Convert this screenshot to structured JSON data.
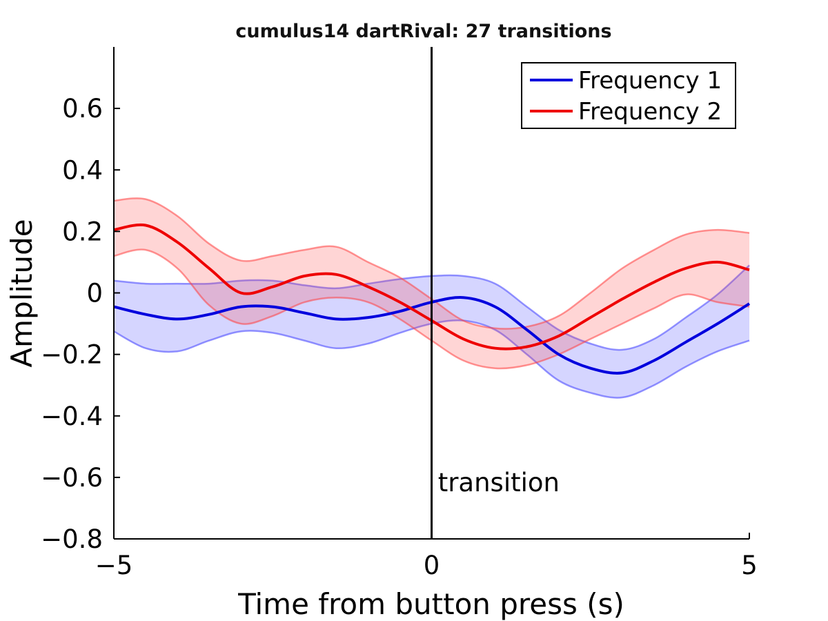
{
  "chart_data": {
    "type": "line",
    "title": "cumulus14 dartRival: 27 transitions",
    "xlabel": "Time from button press (s)",
    "ylabel": "Amplitude",
    "xlim": [
      -5,
      5
    ],
    "ylim": [
      -0.8,
      0.8
    ],
    "xticks": [
      -5,
      0,
      5
    ],
    "xtick_labels": [
      "−5",
      "0",
      "5"
    ],
    "yticks": [
      -0.8,
      -0.6,
      -0.4,
      -0.2,
      0,
      0.2,
      0.4,
      0.6
    ],
    "ytick_labels": [
      "−0.8",
      "−0.6",
      "−0.4",
      "−0.2",
      "0",
      "0.2",
      "0.4",
      "0.6"
    ],
    "grid": false,
    "legend_position": "top-right",
    "annotations": [
      {
        "text": "transition",
        "x": 0.1,
        "y": -0.645
      }
    ],
    "vline": {
      "x": 0,
      "color": "#000000"
    },
    "x": [
      -5,
      -4.5,
      -4,
      -3.5,
      -3,
      -2.5,
      -2,
      -1.5,
      -1,
      -0.5,
      0,
      0.5,
      1,
      1.5,
      2,
      2.5,
      3,
      3.5,
      4,
      4.5,
      5
    ],
    "series": [
      {
        "name": "Frequency 1",
        "color": "#0000dd",
        "band_color": "#4040ff",
        "values": [
          -0.045,
          -0.07,
          -0.085,
          -0.07,
          -0.045,
          -0.045,
          -0.065,
          -0.085,
          -0.08,
          -0.06,
          -0.03,
          -0.015,
          -0.045,
          -0.12,
          -0.2,
          -0.245,
          -0.26,
          -0.22,
          -0.16,
          -0.1,
          -0.035
        ],
        "lower": [
          -0.125,
          -0.18,
          -0.19,
          -0.155,
          -0.125,
          -0.13,
          -0.155,
          -0.18,
          -0.165,
          -0.13,
          -0.1,
          -0.09,
          -0.12,
          -0.2,
          -0.285,
          -0.325,
          -0.34,
          -0.3,
          -0.24,
          -0.19,
          -0.155
        ],
        "upper": [
          0.04,
          0.03,
          0.03,
          0.03,
          0.04,
          0.04,
          0.025,
          0.015,
          0.03,
          0.045,
          0.055,
          0.055,
          0.03,
          -0.045,
          -0.12,
          -0.165,
          -0.185,
          -0.15,
          -0.08,
          -0.005,
          0.09
        ]
      },
      {
        "name": "Frequency 2",
        "color": "#ee0000",
        "band_color": "#ff4040",
        "values": [
          0.205,
          0.22,
          0.165,
          0.08,
          0.0,
          0.02,
          0.055,
          0.06,
          0.02,
          -0.03,
          -0.09,
          -0.15,
          -0.18,
          -0.175,
          -0.14,
          -0.08,
          -0.02,
          0.035,
          0.08,
          0.1,
          0.075
        ],
        "lower": [
          0.12,
          0.14,
          0.08,
          -0.04,
          -0.1,
          -0.075,
          -0.03,
          -0.015,
          -0.03,
          -0.085,
          -0.155,
          -0.22,
          -0.245,
          -0.235,
          -0.2,
          -0.15,
          -0.1,
          -0.05,
          -0.005,
          -0.03,
          -0.045
        ],
        "upper": [
          0.3,
          0.305,
          0.25,
          0.16,
          0.105,
          0.12,
          0.14,
          0.15,
          0.1,
          0.05,
          -0.02,
          -0.09,
          -0.115,
          -0.11,
          -0.075,
          0.0,
          0.08,
          0.14,
          0.19,
          0.205,
          0.195
        ]
      }
    ]
  }
}
